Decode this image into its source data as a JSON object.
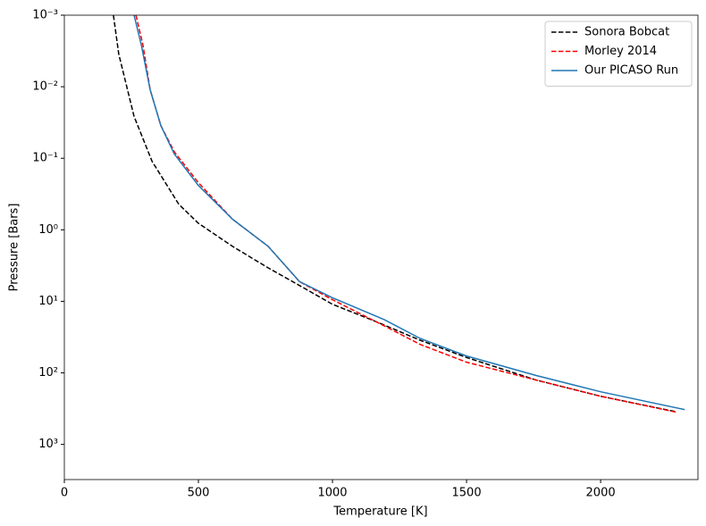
{
  "chart_data": {
    "type": "line",
    "xlabel": "Temperature [K]",
    "ylabel": "Pressure [Bars]",
    "xlim": [
      0,
      2363
    ],
    "xticks": [
      0,
      500,
      1000,
      1500,
      2000
    ],
    "yscale": "log",
    "ylim": [
      3100,
      0.001
    ],
    "yticks": [
      {
        "value": 0.001,
        "label": "10⁻³"
      },
      {
        "value": 0.01,
        "label": "10⁻²"
      },
      {
        "value": 0.1,
        "label": "10⁻¹"
      },
      {
        "value": 1,
        "label": "10⁰"
      },
      {
        "value": 10,
        "label": "10¹"
      },
      {
        "value": 100,
        "label": "10²"
      },
      {
        "value": 1000,
        "label": "10³"
      }
    ],
    "legend": "upper right",
    "series": [
      {
        "name": "Sonora Bobcat",
        "color": "#000000",
        "linestyle": "dashed",
        "x": [
          183,
          203,
          260,
          327,
          427,
          500,
          627,
          760,
          893,
          1000,
          1160,
          1327,
          1500,
          1760,
          2000,
          2277
        ],
        "values": [
          0.001,
          0.0035,
          0.026,
          0.11,
          0.44,
          0.81,
          1.7,
          3.4,
          6.5,
          11,
          19,
          35,
          61,
          126,
          212,
          347
        ]
      },
      {
        "name": "Morley 2014",
        "color": "#ff0000",
        "linestyle": "dashed",
        "x": [
          267,
          293,
          320,
          360,
          410,
          500,
          627,
          760,
          877,
          1000,
          1193,
          1327,
          1500,
          1760,
          2000,
          2283
        ],
        "values": [
          0.001,
          0.0026,
          0.011,
          0.035,
          0.081,
          0.22,
          0.71,
          1.7,
          5.3,
          9.5,
          22,
          40,
          71,
          126,
          212,
          355
        ]
      },
      {
        "name": "Our PICASO Run",
        "color": "#1f77b4",
        "linestyle": "solid",
        "x": [
          260,
          287,
          320,
          360,
          410,
          500,
          627,
          760,
          877,
          1000,
          1193,
          1327,
          1500,
          1760,
          2000,
          2313
        ],
        "values": [
          0.001,
          0.0026,
          0.011,
          0.035,
          0.087,
          0.24,
          0.71,
          1.7,
          5.3,
          8.9,
          18,
          33,
          58,
          109,
          184,
          326
        ]
      }
    ]
  }
}
